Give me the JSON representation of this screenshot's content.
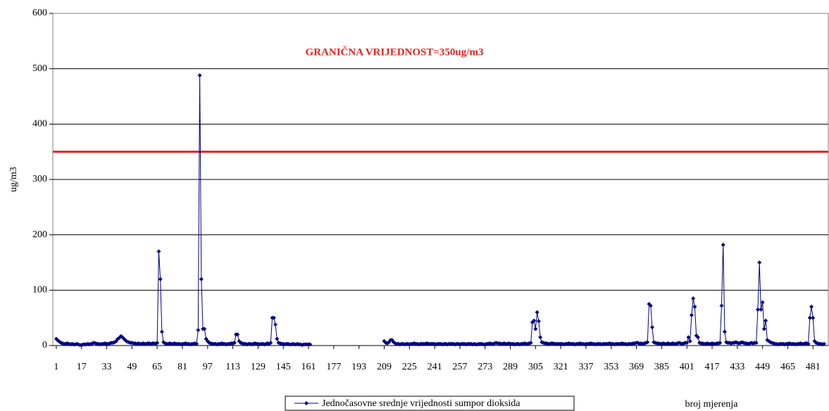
{
  "chart_data": {
    "type": "line",
    "annotation": "GRANIČNA VRIJEDNOST=350ug/m3",
    "threshold": 350,
    "threshold_color": "#e8201c",
    "ylabel": "ug/m3",
    "xlabel": "broj mjerenja",
    "ylim": [
      0,
      600
    ],
    "yticks": [
      0,
      100,
      200,
      300,
      400,
      500,
      600
    ],
    "xlim": [
      -1.2,
      490.7
    ],
    "xticks": [
      1,
      17,
      33,
      49,
      65,
      81,
      97,
      113,
      129,
      145,
      161,
      177,
      193,
      209,
      225,
      241,
      257,
      273,
      289,
      305,
      321,
      337,
      353,
      369,
      385,
      401,
      417,
      433,
      449,
      465,
      481
    ],
    "grid": true,
    "series": [
      {
        "name": "Jednočasovne srednje vrijednosti sumpor dioksida",
        "color": "#000080",
        "values": [
          12,
          9,
          7,
          5,
          4,
          3,
          3,
          4,
          3,
          2,
          3,
          2,
          2,
          3,
          2,
          1,
          1,
          2,
          2,
          2,
          3,
          2,
          3,
          4,
          5,
          4,
          3,
          3,
          2,
          3,
          3,
          4,
          3,
          3,
          4,
          5,
          5,
          6,
          8,
          12,
          14,
          17,
          15,
          12,
          9,
          7,
          6,
          5,
          5,
          4,
          4,
          3,
          4,
          3,
          3,
          4,
          3,
          3,
          4,
          4,
          3,
          4,
          4,
          3,
          5,
          170,
          120,
          25,
          6,
          4,
          3,
          3,
          4,
          3,
          3,
          4,
          3,
          3,
          3,
          2,
          3,
          3,
          4,
          3,
          3,
          2,
          3,
          3,
          4,
          3,
          28,
          488,
          120,
          30,
          30,
          12,
          8,
          5,
          4,
          3,
          3,
          3,
          2,
          3,
          3,
          4,
          3,
          3,
          2,
          3,
          3,
          4,
          4,
          5,
          20,
          20,
          8,
          5,
          4,
          3,
          3,
          2,
          3,
          3,
          2,
          3,
          4,
          3,
          3,
          2,
          3,
          3,
          2,
          3,
          4,
          3,
          5,
          50,
          50,
          38,
          12,
          5,
          4,
          3,
          3,
          2,
          3,
          3,
          2,
          2,
          3,
          2,
          2,
          3,
          2,
          2,
          1,
          2,
          2,
          2,
          2,
          2,
          null,
          null,
          null,
          null,
          null,
          null,
          null,
          null,
          null,
          null,
          null,
          null,
          null,
          null,
          null,
          null,
          null,
          null,
          null,
          null,
          null,
          null,
          null,
          null,
          null,
          null,
          null,
          null,
          null,
          null,
          null,
          null,
          null,
          null,
          null,
          null,
          null,
          null,
          null,
          null,
          null,
          null,
          null,
          null,
          null,
          null,
          8,
          5,
          4,
          6,
          10,
          10,
          6,
          4,
          3,
          3,
          2,
          3,
          3,
          2,
          3,
          3,
          2,
          3,
          3,
          4,
          3,
          3,
          2,
          3,
          3,
          3,
          3,
          4,
          3,
          3,
          3,
          3,
          3,
          2,
          3,
          3,
          3,
          2,
          3,
          3,
          2,
          3,
          3,
          3,
          3,
          2,
          3,
          3,
          2,
          3,
          3,
          3,
          2,
          3,
          3,
          3,
          2,
          3,
          2,
          2,
          3,
          3,
          3,
          2,
          2,
          3,
          3,
          4,
          3,
          3,
          4,
          5,
          4,
          4,
          3,
          3,
          4,
          3,
          3,
          4,
          3,
          3,
          3,
          2,
          3,
          3,
          2,
          3,
          3,
          4,
          3,
          3,
          4,
          5,
          42,
          45,
          30,
          60,
          44,
          15,
          6,
          5,
          4,
          4,
          3,
          3,
          4,
          4,
          3,
          3,
          3,
          3,
          3,
          3,
          2,
          3,
          3,
          4,
          3,
          3,
          3,
          2,
          3,
          3,
          4,
          3,
          3,
          2,
          3,
          3,
          3,
          4,
          3,
          3,
          2,
          3,
          3,
          3,
          2,
          3,
          3,
          3,
          3,
          4,
          3,
          3,
          2,
          3,
          3,
          3,
          3,
          4,
          3,
          3,
          2,
          3,
          3,
          3,
          4,
          4,
          5,
          5,
          3,
          4,
          3,
          4,
          5,
          6,
          75,
          72,
          33,
          6,
          5,
          4,
          4,
          3,
          3,
          4,
          3,
          3,
          4,
          3,
          3,
          4,
          3,
          3,
          4,
          5,
          4,
          3,
          4,
          5,
          5,
          15,
          8,
          55,
          85,
          70,
          18,
          15,
          5,
          4,
          4,
          3,
          3,
          4,
          3,
          3,
          4,
          3,
          3,
          4,
          4,
          5,
          72,
          182,
          25,
          6,
          5,
          5,
          4,
          5,
          5,
          6,
          5,
          4,
          5,
          6,
          5,
          4,
          4,
          3,
          4,
          5,
          4,
          5,
          5,
          65,
          150,
          65,
          78,
          30,
          45,
          10,
          8,
          6,
          5,
          4,
          3,
          3,
          2,
          3,
          3,
          3,
          2,
          3,
          3,
          4,
          3,
          3,
          3,
          2,
          3,
          3,
          4,
          3,
          3,
          4,
          4,
          3,
          50,
          70,
          50,
          8,
          5,
          4,
          3,
          3,
          2,
          3
        ]
      }
    ]
  }
}
